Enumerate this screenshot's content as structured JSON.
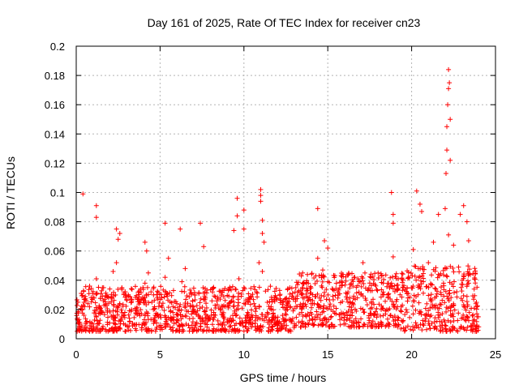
{
  "chart_data": {
    "type": "scatter",
    "title": "Day 161 of 2025, Rate Of TEC Index for receiver cn23",
    "xlabel": "GPS time / hours",
    "ylabel": "ROTI / TECUs",
    "xlim": [
      0,
      25
    ],
    "ylim": [
      0,
      0.2
    ],
    "x_ticks": [
      0,
      5,
      10,
      15,
      20,
      25
    ],
    "y_ticks": [
      0,
      0.02,
      0.04,
      0.06,
      0.08,
      0.1,
      0.12,
      0.14,
      0.16,
      0.18,
      0.2
    ],
    "x_tick_labels": [
      "0",
      "5",
      "10",
      "15",
      "20",
      "25"
    ],
    "y_tick_labels": [
      "0",
      "0.02",
      "0.04",
      "0.06",
      "0.08",
      "0.1",
      "0.12",
      "0.14",
      "0.16",
      "0.18",
      "0.2"
    ],
    "grid": true,
    "marker": "+",
    "color": "#ff0000",
    "series": [
      {
        "name": "ROTI",
        "x": [
          0.1,
          0.3,
          0.5,
          0.8,
          1.0,
          1.2,
          1.5,
          1.7,
          2.0,
          2.2,
          2.4,
          2.6,
          2.9,
          3.1,
          3.3,
          3.6,
          3.9,
          4.1,
          4.3,
          4.6,
          4.9,
          5.1,
          5.3,
          5.5,
          5.8,
          6.0,
          6.3,
          6.5,
          6.8,
          7.0,
          7.3,
          7.6,
          7.9,
          8.2,
          8.5,
          8.8,
          9.1,
          9.4,
          9.7,
          10.0,
          10.3,
          10.6,
          10.9,
          11.1,
          11.4,
          11.7,
          12.0,
          12.3,
          12.6,
          12.9,
          13.2,
          13.5,
          13.8,
          14.1,
          14.4,
          14.7,
          15.0,
          15.3,
          15.6,
          15.9,
          16.2,
          16.5,
          16.8,
          17.1,
          17.4,
          17.7,
          18.0,
          18.3,
          18.6,
          18.9,
          19.2,
          19.5,
          19.8,
          20.1,
          20.4,
          20.7,
          21.0,
          21.3,
          21.6,
          21.9,
          22.2,
          22.5,
          22.8,
          23.1,
          23.4,
          23.7,
          23.9,
          0.4,
          1.2,
          1.2,
          2.4,
          2.5,
          2.6,
          4.1,
          4.2,
          5.3,
          6.2,
          7.4,
          7.6,
          9.4,
          9.6,
          9.6,
          10.0,
          10.0,
          11.0,
          11.0,
          11.0,
          11.1,
          11.1,
          11.2,
          14.4,
          14.8,
          15.0,
          18.8,
          18.9,
          18.9,
          20.3,
          20.5,
          20.6,
          21.6,
          22.0,
          22.05,
          22.1,
          22.1,
          22.15,
          22.2,
          22.2,
          22.25,
          22.3,
          22.3,
          22.9,
          23.1,
          23.3,
          23.4
        ],
        "y": [
          0.025,
          0.031,
          0.022,
          0.036,
          0.028,
          0.041,
          0.019,
          0.027,
          0.034,
          0.046,
          0.052,
          0.024,
          0.018,
          0.03,
          0.026,
          0.021,
          0.017,
          0.038,
          0.045,
          0.02,
          0.015,
          0.028,
          0.042,
          0.055,
          0.033,
          0.024,
          0.039,
          0.048,
          0.022,
          0.019,
          0.016,
          0.027,
          0.014,
          0.018,
          0.021,
          0.033,
          0.029,
          0.025,
          0.041,
          0.035,
          0.028,
          0.024,
          0.052,
          0.046,
          0.018,
          0.013,
          0.011,
          0.016,
          0.02,
          0.031,
          0.037,
          0.045,
          0.028,
          0.024,
          0.055,
          0.047,
          0.039,
          0.029,
          0.032,
          0.044,
          0.025,
          0.036,
          0.041,
          0.052,
          0.033,
          0.027,
          0.045,
          0.038,
          0.03,
          0.056,
          0.041,
          0.035,
          0.042,
          0.061,
          0.048,
          0.039,
          0.052,
          0.066,
          0.044,
          0.038,
          0.071,
          0.064,
          0.049,
          0.043,
          0.038,
          0.027,
          0.022,
          0.099,
          0.091,
          0.083,
          0.075,
          0.068,
          0.072,
          0.066,
          0.06,
          0.079,
          0.075,
          0.079,
          0.063,
          0.074,
          0.084,
          0.096,
          0.075,
          0.088,
          0.102,
          0.098,
          0.094,
          0.081,
          0.072,
          0.066,
          0.089,
          0.067,
          0.062,
          0.1,
          0.085,
          0.079,
          0.101,
          0.092,
          0.087,
          0.085,
          0.089,
          0.113,
          0.129,
          0.145,
          0.16,
          0.171,
          0.184,
          0.175,
          0.15,
          0.122,
          0.085,
          0.091,
          0.08,
          0.067
        ]
      }
    ],
    "dense_bands": [
      {
        "x": [
          0,
          13
        ],
        "y": [
          0.005,
          0.036
        ]
      },
      {
        "x": [
          13,
          19.3
        ],
        "y": [
          0.008,
          0.045
        ]
      },
      {
        "x": [
          19.3,
          24
        ],
        "y": [
          0.005,
          0.05
        ]
      }
    ]
  }
}
